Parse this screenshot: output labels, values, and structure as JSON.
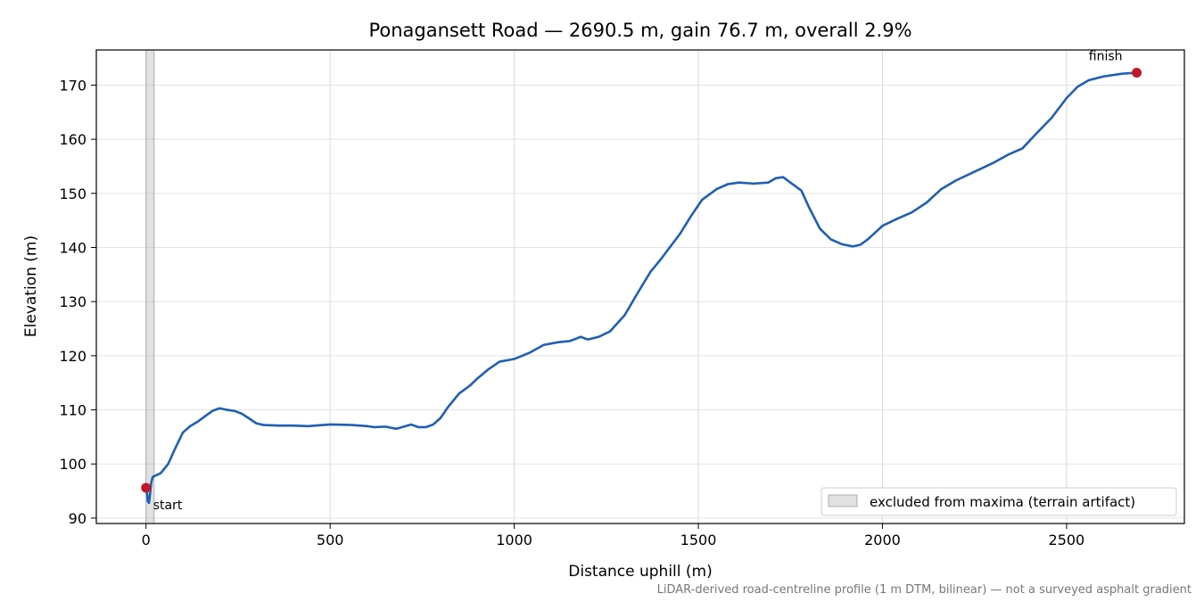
{
  "chart_data": {
    "type": "line",
    "title": "Ponagansett Road — 2690.5 m, gain 76.7 m, overall 2.9%",
    "xlabel": "Distance uphill (m)",
    "ylabel": "Elevation (m)",
    "xlim": [
      -135,
      2820
    ],
    "ylim": [
      89,
      176.5
    ],
    "xticks": [
      0,
      500,
      1000,
      1500,
      2000,
      2500
    ],
    "xtick_labels": [
      "0",
      "500",
      "1000",
      "1500",
      "2000",
      "2500"
    ],
    "yticks": [
      90,
      100,
      110,
      120,
      130,
      140,
      150,
      160,
      170
    ],
    "ytick_labels": [
      "90",
      "100",
      "110",
      "120",
      "130",
      "140",
      "150",
      "160",
      "170"
    ],
    "grid": true,
    "line_color": "#1f5fb4",
    "marker_color": "#c0182a",
    "excluded_band": {
      "x_start": 0,
      "x_end": 22,
      "color": "#bdbdbd",
      "legend_label": "excluded from maxima (terrain artifact)"
    },
    "legend_position": "lower-right",
    "series": [
      {
        "x": [
          0,
          3,
          5,
          8,
          11,
          14,
          18,
          24,
          40,
          60,
          80,
          100,
          120,
          140,
          160,
          180,
          200,
          220,
          240,
          260,
          280,
          300,
          320,
          360,
          400,
          440,
          480,
          500,
          560,
          600,
          620,
          650,
          680,
          700,
          720,
          740,
          760,
          780,
          800,
          820,
          850,
          880,
          900,
          930,
          960,
          1000,
          1040,
          1080,
          1120,
          1150,
          1170,
          1180,
          1200,
          1230,
          1260,
          1300,
          1330,
          1370,
          1400,
          1450,
          1480,
          1510,
          1550,
          1580,
          1610,
          1650,
          1690,
          1710,
          1730,
          1760,
          1780,
          1800,
          1830,
          1860,
          1890,
          1920,
          1940,
          1960,
          2000,
          2040,
          2080,
          2120,
          2160,
          2200,
          2250,
          2300,
          2340,
          2380,
          2420,
          2460,
          2500,
          2530,
          2560,
          2600,
          2650,
          2690.5
        ],
        "y": [
          95.6,
          94.5,
          93.1,
          92.8,
          94.5,
          96.5,
          97.6,
          97.8,
          98.3,
          100.0,
          103.0,
          105.8,
          107.0,
          107.8,
          108.8,
          109.8,
          110.3,
          110.0,
          109.8,
          109.3,
          108.4,
          107.5,
          107.2,
          107.1,
          107.1,
          107.0,
          107.2,
          107.3,
          107.2,
          107.0,
          106.8,
          106.9,
          106.5,
          106.9,
          107.3,
          106.8,
          106.8,
          107.3,
          108.5,
          110.5,
          113.0,
          114.5,
          115.8,
          117.5,
          118.9,
          119.4,
          120.5,
          122.0,
          122.5,
          122.7,
          123.2,
          123.5,
          123.0,
          123.5,
          124.5,
          127.5,
          131.0,
          135.5,
          138.0,
          142.5,
          145.8,
          148.8,
          150.8,
          151.7,
          152.0,
          151.8,
          152.0,
          152.8,
          153.0,
          151.5,
          150.5,
          147.5,
          143.5,
          141.5,
          140.6,
          140.2,
          140.5,
          141.5,
          144.0,
          145.3,
          146.5,
          148.3,
          150.8,
          152.4,
          154.0,
          155.6,
          157.1,
          158.3,
          161.2,
          164.0,
          167.6,
          169.7,
          170.9,
          171.6,
          172.1,
          172.3
        ]
      }
    ],
    "annotations": [
      {
        "text": "start",
        "x": 0,
        "y": 95.6
      },
      {
        "text": "finish",
        "x": 2690.5,
        "y": 172.3
      }
    ],
    "footnote": "LiDAR-derived road-centreline profile (1 m DTM, bilinear) — not a surveyed asphalt gradient"
  }
}
